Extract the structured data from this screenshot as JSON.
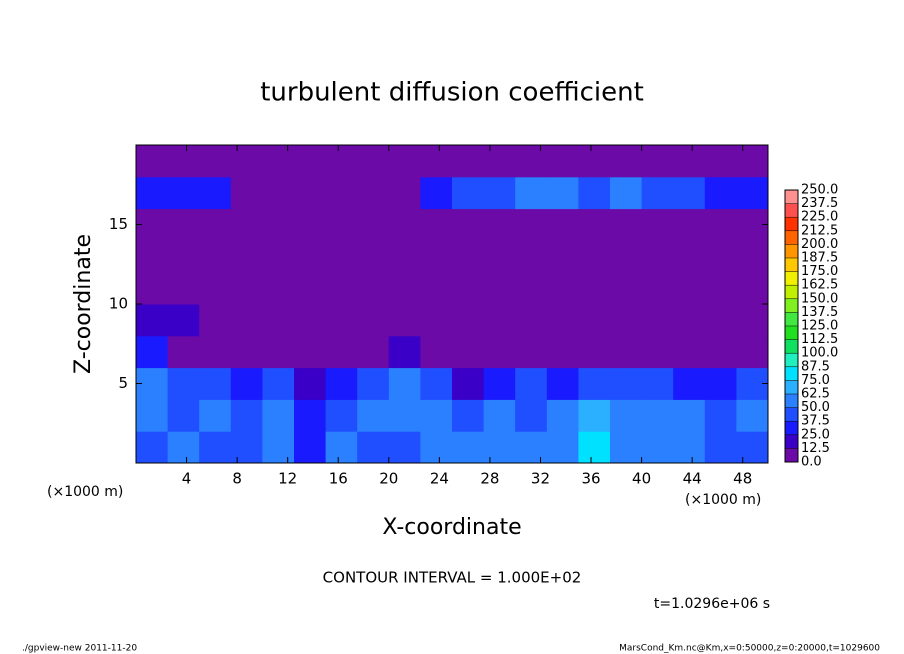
{
  "chart_data": {
    "type": "heatmap",
    "title": "turbulent diffusion coefficient",
    "x_label": "X-coordinate",
    "y_label": "Z-coordinate",
    "x_unit_label": "(×1000 m)",
    "x_unit_label_right": "(×1000 m)",
    "contour_note": "CONTOUR INTERVAL = 1.000E+02",
    "time_note": "t=1.0296e+06 s",
    "footer_left": "./gpview-new  2011-11-20",
    "footer_right": "MarsCond_Km.nc@Km,x=0:50000,z=0:20000,t=1029600",
    "xlim": [
      0,
      50
    ],
    "ylim": [
      0,
      20
    ],
    "xticks": [
      4,
      8,
      12,
      16,
      20,
      24,
      28,
      32,
      36,
      40,
      44,
      48
    ],
    "yticks": [
      5,
      10,
      15
    ],
    "xbins": [
      0,
      2.5,
      5,
      7.5,
      10,
      12.5,
      15,
      17.5,
      20,
      22.5,
      25,
      27.5,
      30,
      32.5,
      35,
      37.5,
      40,
      42.5,
      45,
      47.5,
      50
    ],
    "ybins": [
      0,
      2,
      4,
      6,
      8,
      10,
      12,
      14,
      16,
      18,
      20
    ],
    "values": [
      [
        45,
        50,
        40,
        45,
        50,
        35,
        55,
        45,
        40,
        60,
        55,
        50,
        55,
        55,
        85,
        60,
        60,
        55,
        45,
        40
      ],
      [
        50,
        45,
        55,
        40,
        55,
        35,
        45,
        50,
        60,
        50,
        40,
        55,
        45,
        50,
        70,
        55,
        50,
        55,
        45,
        50
      ],
      [
        55,
        40,
        45,
        30,
        40,
        20,
        25,
        40,
        55,
        40,
        15,
        35,
        45,
        25,
        45,
        40,
        45,
        30,
        25,
        45
      ],
      [
        30,
        5,
        0,
        0,
        0,
        0,
        0,
        0,
        15,
        10,
        0,
        0,
        10,
        0,
        10,
        5,
        0,
        0,
        0,
        0
      ],
      [
        20,
        15,
        5,
        0,
        0,
        0,
        5,
        0,
        0,
        0,
        0,
        5,
        0,
        5,
        0,
        5,
        0,
        0,
        0,
        0
      ],
      [
        0,
        0,
        5,
        0,
        0,
        0,
        0,
        0,
        0,
        5,
        0,
        0,
        0,
        5,
        5,
        0,
        0,
        0,
        0,
        0
      ],
      [
        0,
        0,
        0,
        0,
        0,
        0,
        0,
        0,
        0,
        0,
        0,
        0,
        0,
        0,
        0,
        0,
        0,
        0,
        0,
        0
      ],
      [
        0,
        0,
        0,
        0,
        0,
        0,
        0,
        0,
        0,
        0,
        0,
        0,
        0,
        0,
        0,
        0,
        0,
        0,
        0,
        0
      ],
      [
        30,
        30,
        25,
        0,
        0,
        0,
        0,
        0,
        0,
        25,
        40,
        45,
        55,
        50,
        45,
        50,
        45,
        40,
        35,
        30
      ],
      [
        0,
        0,
        0,
        0,
        0,
        0,
        0,
        0,
        0,
        5,
        5,
        0,
        0,
        0,
        0,
        0,
        0,
        0,
        0,
        0
      ]
    ],
    "levels": [
      {
        "value": 0,
        "label": "0.0"
      },
      {
        "value": 12.5,
        "label": "12.5"
      },
      {
        "value": 25,
        "label": "25.0"
      },
      {
        "value": 37.5,
        "label": "37.5"
      },
      {
        "value": 50,
        "label": "50.0"
      },
      {
        "value": 62.5,
        "label": "62.5"
      },
      {
        "value": 75,
        "label": "75.0"
      },
      {
        "value": 87.5,
        "label": "87.5"
      },
      {
        "value": 100,
        "label": "100.0"
      },
      {
        "value": 112.5,
        "label": "112.5"
      },
      {
        "value": 125,
        "label": "125.0"
      },
      {
        "value": 137.5,
        "label": "137.5"
      },
      {
        "value": 150,
        "label": "150.0"
      },
      {
        "value": 162.5,
        "label": "162.5"
      },
      {
        "value": 175,
        "label": "175.0"
      },
      {
        "value": 187.5,
        "label": "187.5"
      },
      {
        "value": 200,
        "label": "200.0"
      },
      {
        "value": 212.5,
        "label": "212.5"
      },
      {
        "value": 225,
        "label": "225.0"
      },
      {
        "value": 237.5,
        "label": "237.5"
      },
      {
        "value": 250,
        "label": "250.0"
      }
    ],
    "colors": [
      "#6b0aa6",
      "#3a00c8",
      "#1a1aff",
      "#1f4fff",
      "#2a80ff",
      "#2ab0ff",
      "#00e0ff",
      "#20f0c0",
      "#10e060",
      "#20e020",
      "#40e840",
      "#80f020",
      "#c0f000",
      "#f0f000",
      "#ffc800",
      "#ff9600",
      "#ff6400",
      "#ff3200",
      "#ff5050",
      "#ff9090"
    ]
  }
}
